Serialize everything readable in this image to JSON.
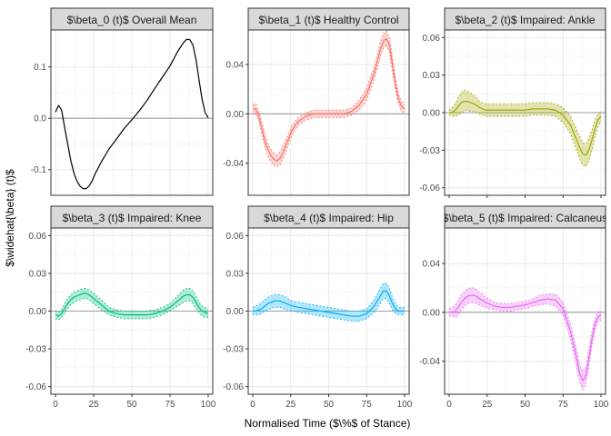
{
  "chart_data": {
    "type": "line",
    "xlabel": "Normalised Time ($\\%$ of Stance)",
    "ylabel": "$\\widehat{\\beta} (t)$",
    "x_ticks": [
      0,
      25,
      50,
      75,
      100
    ],
    "xlim": [
      -3,
      103
    ],
    "grid": true,
    "legend": "none",
    "zero_line": true,
    "panels": [
      {
        "title": "$\\beta_0 (t)$ Overall Mean",
        "color": "#000000",
        "band": false,
        "ylim": [
          -0.15,
          0.172
        ],
        "y_ticks": [
          -0.1,
          0.0,
          0.1
        ],
        "y_tick_labels": [
          "-0.1",
          "0.0",
          "0.1"
        ],
        "x": [
          0,
          2,
          4,
          6,
          8,
          10,
          12,
          14,
          16,
          18,
          20,
          22,
          24,
          26,
          30,
          35,
          40,
          45,
          50,
          55,
          60,
          65,
          70,
          75,
          80,
          84,
          86,
          88,
          90,
          92,
          94,
          96,
          98,
          100
        ],
        "values": [
          0.012,
          0.025,
          0.016,
          -0.018,
          -0.05,
          -0.082,
          -0.106,
          -0.122,
          -0.132,
          -0.137,
          -0.137,
          -0.132,
          -0.122,
          -0.108,
          -0.085,
          -0.06,
          -0.04,
          -0.02,
          -0.003,
          0.015,
          0.035,
          0.058,
          0.08,
          0.102,
          0.13,
          0.148,
          0.154,
          0.153,
          0.143,
          0.115,
          0.075,
          0.037,
          0.011,
          0.001
        ],
        "lower": [],
        "upper": []
      },
      {
        "title": "$\\beta_1 (t)$ Healthy Control",
        "color": "#F8766D",
        "band": true,
        "ylim": [
          -0.066,
          0.068
        ],
        "y_ticks": [
          -0.04,
          0.0,
          0.04
        ],
        "y_tick_labels": [
          "-0.04",
          "0.00",
          "0.04"
        ],
        "x": [
          0,
          2,
          4,
          6,
          8,
          10,
          12,
          14,
          16,
          18,
          20,
          22,
          24,
          26,
          30,
          35,
          40,
          45,
          50,
          55,
          60,
          65,
          70,
          75,
          80,
          84,
          86,
          88,
          90,
          92,
          94,
          96,
          98,
          100
        ],
        "values": [
          0.004,
          0.004,
          -0.002,
          -0.012,
          -0.022,
          -0.029,
          -0.034,
          -0.037,
          -0.038,
          -0.036,
          -0.031,
          -0.025,
          -0.019,
          -0.013,
          -0.006,
          -0.002,
          0.0,
          0.0,
          0.0,
          0.0,
          0.0,
          0.002,
          0.007,
          0.016,
          0.033,
          0.052,
          0.059,
          0.061,
          0.056,
          0.04,
          0.024,
          0.012,
          0.006,
          0.004
        ],
        "lower": [
          0.0,
          0.0,
          -0.006,
          -0.017,
          -0.027,
          -0.034,
          -0.039,
          -0.042,
          -0.043,
          -0.041,
          -0.036,
          -0.03,
          -0.023,
          -0.017,
          -0.009,
          -0.005,
          -0.003,
          -0.003,
          -0.003,
          -0.003,
          -0.003,
          -0.001,
          0.003,
          0.011,
          0.028,
          0.046,
          0.053,
          0.055,
          0.05,
          0.034,
          0.019,
          0.008,
          0.002,
          0.001
        ],
        "upper": [
          0.008,
          0.008,
          0.002,
          -0.007,
          -0.017,
          -0.024,
          -0.029,
          -0.032,
          -0.033,
          -0.031,
          -0.026,
          -0.02,
          -0.015,
          -0.009,
          -0.003,
          0.001,
          0.003,
          0.003,
          0.003,
          0.003,
          0.003,
          0.005,
          0.011,
          0.021,
          0.038,
          0.058,
          0.065,
          0.067,
          0.062,
          0.046,
          0.029,
          0.016,
          0.01,
          0.008
        ]
      },
      {
        "title": "$\\beta_2 (t)$ Impaired: Ankle",
        "color": "#A3A500",
        "band": true,
        "ylim": [
          -0.066,
          0.066
        ],
        "y_ticks": [
          -0.06,
          -0.03,
          0.0,
          0.03,
          0.06
        ],
        "y_tick_labels": [
          "-0.06",
          "-0.03",
          "0.00",
          "0.03",
          "0.06"
        ],
        "x": [
          0,
          2,
          4,
          6,
          8,
          10,
          12,
          14,
          16,
          18,
          20,
          22,
          24,
          26,
          30,
          35,
          40,
          45,
          50,
          55,
          60,
          65,
          70,
          75,
          80,
          84,
          86,
          88,
          90,
          92,
          94,
          96,
          98,
          100
        ],
        "values": [
          0.0,
          0.0,
          0.002,
          0.005,
          0.008,
          0.009,
          0.009,
          0.008,
          0.007,
          0.006,
          0.004,
          0.003,
          0.002,
          0.002,
          0.002,
          0.002,
          0.002,
          0.002,
          0.002,
          0.003,
          0.003,
          0.003,
          0.002,
          -0.002,
          -0.01,
          -0.022,
          -0.028,
          -0.033,
          -0.034,
          -0.03,
          -0.022,
          -0.013,
          -0.006,
          -0.003
        ],
        "lower": [
          -0.002,
          -0.003,
          -0.003,
          -0.002,
          0.0,
          0.001,
          0.002,
          0.001,
          0.001,
          0.0,
          -0.001,
          -0.002,
          -0.003,
          -0.003,
          -0.003,
          -0.003,
          -0.003,
          -0.003,
          -0.003,
          -0.002,
          -0.002,
          -0.002,
          -0.003,
          -0.008,
          -0.017,
          -0.03,
          -0.037,
          -0.042,
          -0.043,
          -0.039,
          -0.03,
          -0.02,
          -0.011,
          -0.007
        ],
        "upper": [
          0.002,
          0.004,
          0.007,
          0.012,
          0.016,
          0.018,
          0.017,
          0.016,
          0.014,
          0.012,
          0.009,
          0.008,
          0.007,
          0.007,
          0.007,
          0.007,
          0.007,
          0.007,
          0.007,
          0.008,
          0.008,
          0.008,
          0.007,
          0.004,
          -0.003,
          -0.014,
          -0.019,
          -0.024,
          -0.025,
          -0.021,
          -0.014,
          -0.006,
          -0.001,
          0.001
        ]
      },
      {
        "title": "$\\beta_3 (t)$ Impaired: Knee",
        "color": "#00BF7D",
        "band": true,
        "ylim": [
          -0.066,
          0.066
        ],
        "y_ticks": [
          -0.06,
          -0.03,
          0.0,
          0.03,
          0.06
        ],
        "y_tick_labels": [
          "-0.06",
          "-0.03",
          "0.00",
          "0.03",
          "0.06"
        ],
        "x": [
          0,
          2,
          4,
          6,
          8,
          10,
          12,
          14,
          16,
          18,
          20,
          22,
          24,
          26,
          30,
          35,
          40,
          45,
          50,
          55,
          60,
          65,
          70,
          75,
          80,
          84,
          86,
          88,
          90,
          92,
          94,
          96,
          98,
          100
        ],
        "values": [
          -0.003,
          -0.004,
          -0.002,
          0.002,
          0.006,
          0.009,
          0.011,
          0.012,
          0.013,
          0.014,
          0.014,
          0.013,
          0.011,
          0.009,
          0.005,
          0.0,
          -0.002,
          -0.003,
          -0.003,
          -0.003,
          -0.003,
          -0.002,
          0.0,
          0.003,
          0.008,
          0.012,
          0.013,
          0.013,
          0.011,
          0.007,
          0.003,
          0.0,
          -0.001,
          -0.002
        ],
        "lower": [
          -0.006,
          -0.007,
          -0.005,
          -0.002,
          0.002,
          0.005,
          0.007,
          0.008,
          0.009,
          0.01,
          0.01,
          0.009,
          0.007,
          0.005,
          0.001,
          -0.003,
          -0.005,
          -0.006,
          -0.006,
          -0.006,
          -0.006,
          -0.005,
          -0.003,
          0.0,
          0.004,
          0.007,
          0.008,
          0.008,
          0.006,
          0.002,
          -0.001,
          -0.004,
          -0.005,
          -0.005
        ],
        "upper": [
          0.0,
          -0.001,
          0.001,
          0.006,
          0.01,
          0.013,
          0.015,
          0.016,
          0.017,
          0.018,
          0.018,
          0.017,
          0.015,
          0.013,
          0.009,
          0.003,
          0.001,
          0.0,
          0.0,
          0.0,
          0.0,
          0.001,
          0.003,
          0.006,
          0.012,
          0.017,
          0.018,
          0.018,
          0.016,
          0.012,
          0.007,
          0.004,
          0.003,
          0.001
        ]
      },
      {
        "title": "$\\beta_4 (t)$ Impaired: Hip",
        "color": "#00B0F6",
        "band": true,
        "ylim": [
          -0.066,
          0.066
        ],
        "y_ticks": [
          -0.06,
          -0.03,
          0.0,
          0.03,
          0.06
        ],
        "y_tick_labels": [
          "-0.06",
          "-0.03",
          "0.00",
          "0.03",
          "0.06"
        ],
        "x": [
          0,
          2,
          4,
          6,
          8,
          10,
          12,
          14,
          16,
          18,
          20,
          22,
          24,
          26,
          30,
          35,
          40,
          45,
          50,
          55,
          60,
          65,
          70,
          75,
          80,
          84,
          86,
          88,
          90,
          92,
          94,
          96,
          98,
          100
        ],
        "values": [
          0.0,
          0.0,
          0.001,
          0.002,
          0.004,
          0.006,
          0.007,
          0.008,
          0.008,
          0.008,
          0.007,
          0.006,
          0.005,
          0.004,
          0.003,
          0.002,
          0.001,
          0.0,
          -0.001,
          -0.002,
          -0.003,
          -0.004,
          -0.004,
          -0.002,
          0.004,
          0.012,
          0.016,
          0.016,
          0.012,
          0.006,
          0.002,
          0.0,
          0.0,
          0.0
        ],
        "lower": [
          -0.003,
          -0.003,
          -0.003,
          -0.002,
          0.0,
          0.001,
          0.002,
          0.003,
          0.003,
          0.003,
          0.002,
          0.001,
          0.001,
          0.0,
          -0.001,
          -0.002,
          -0.003,
          -0.004,
          -0.005,
          -0.006,
          -0.007,
          -0.008,
          -0.008,
          -0.006,
          -0.001,
          0.006,
          0.01,
          0.01,
          0.006,
          0.001,
          -0.002,
          -0.003,
          -0.003,
          -0.003
        ],
        "upper": [
          0.003,
          0.004,
          0.005,
          0.007,
          0.009,
          0.011,
          0.012,
          0.013,
          0.013,
          0.013,
          0.012,
          0.011,
          0.009,
          0.008,
          0.007,
          0.006,
          0.005,
          0.004,
          0.003,
          0.002,
          0.001,
          0.0,
          0.0,
          0.002,
          0.009,
          0.018,
          0.022,
          0.022,
          0.018,
          0.011,
          0.006,
          0.003,
          0.003,
          0.003
        ]
      },
      {
        "title": "$\\beta_5 (t)$ Impaired: Calcaneus",
        "color": "#E76BF3",
        "band": true,
        "ylim": [
          -0.067,
          0.069
        ],
        "y_ticks": [
          -0.04,
          0.0,
          0.04
        ],
        "y_tick_labels": [
          "-0.04",
          "0.00",
          "0.04"
        ],
        "x": [
          0,
          2,
          4,
          6,
          8,
          10,
          12,
          14,
          16,
          18,
          20,
          22,
          24,
          26,
          30,
          35,
          40,
          45,
          50,
          55,
          60,
          65,
          70,
          75,
          80,
          84,
          86,
          88,
          90,
          92,
          94,
          96,
          98,
          100
        ],
        "values": [
          0.0,
          0.0,
          0.001,
          0.004,
          0.008,
          0.011,
          0.013,
          0.014,
          0.014,
          0.013,
          0.011,
          0.01,
          0.008,
          0.007,
          0.005,
          0.004,
          0.004,
          0.005,
          0.006,
          0.008,
          0.01,
          0.011,
          0.01,
          0.003,
          -0.016,
          -0.038,
          -0.05,
          -0.056,
          -0.052,
          -0.038,
          -0.022,
          -0.01,
          -0.004,
          -0.002
        ],
        "lower": [
          -0.003,
          -0.003,
          -0.004,
          -0.002,
          0.002,
          0.005,
          0.007,
          0.008,
          0.008,
          0.007,
          0.006,
          0.005,
          0.004,
          0.003,
          0.002,
          0.001,
          0.001,
          0.002,
          0.003,
          0.005,
          0.006,
          0.007,
          0.005,
          -0.002,
          -0.022,
          -0.045,
          -0.057,
          -0.063,
          -0.059,
          -0.045,
          -0.028,
          -0.015,
          -0.008,
          -0.006
        ],
        "upper": [
          0.003,
          0.004,
          0.006,
          0.01,
          0.014,
          0.017,
          0.019,
          0.02,
          0.02,
          0.019,
          0.016,
          0.015,
          0.012,
          0.011,
          0.008,
          0.007,
          0.007,
          0.008,
          0.009,
          0.011,
          0.014,
          0.015,
          0.015,
          0.008,
          -0.01,
          -0.031,
          -0.043,
          -0.049,
          -0.045,
          -0.031,
          -0.016,
          -0.005,
          0.0,
          0.002
        ]
      }
    ]
  }
}
